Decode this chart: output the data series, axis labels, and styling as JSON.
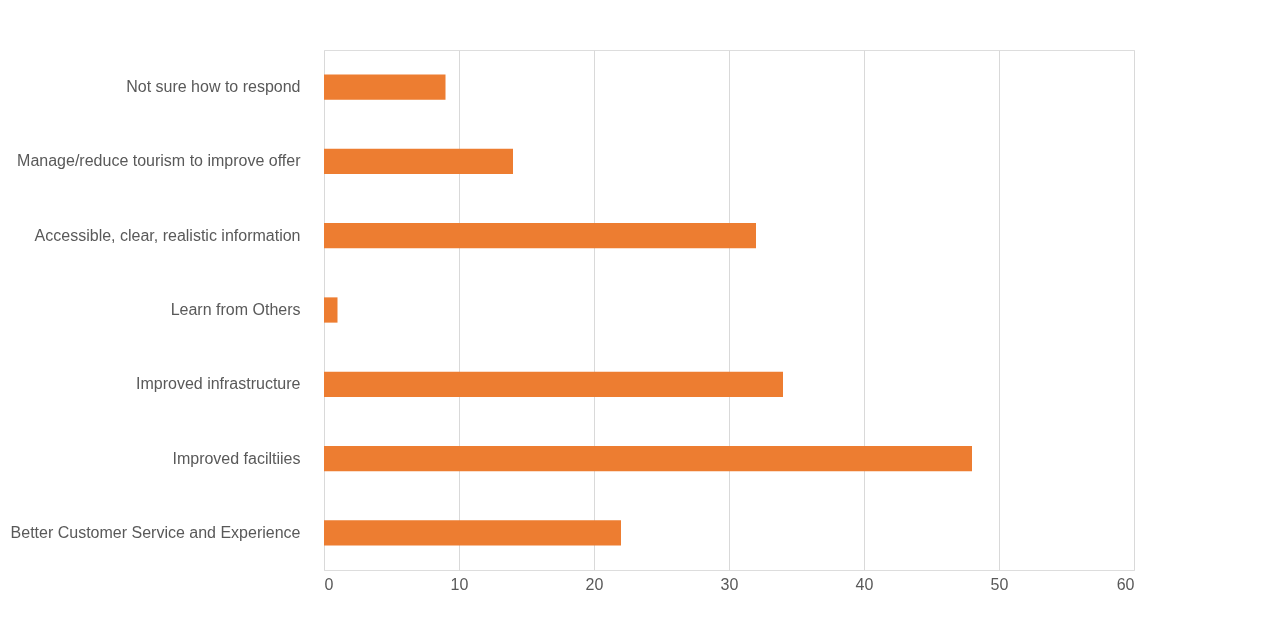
{
  "chart_data": {
    "type": "bar",
    "orientation": "horizontal",
    "categories": [
      "Not sure how to respond",
      "Manage/reduce tourism to improve offer",
      "Accessible, clear, realistic information",
      "Learn from Others",
      "Improved infrastructure",
      "Improved faciltiies",
      "Better Customer Service and Experience"
    ],
    "values": [
      9,
      14,
      32,
      1,
      34,
      48,
      22
    ],
    "color": "#ed7d31",
    "xlim": [
      0,
      60
    ],
    "xticks": [
      0,
      10,
      20,
      30,
      40,
      50,
      60
    ],
    "grid": "x"
  }
}
